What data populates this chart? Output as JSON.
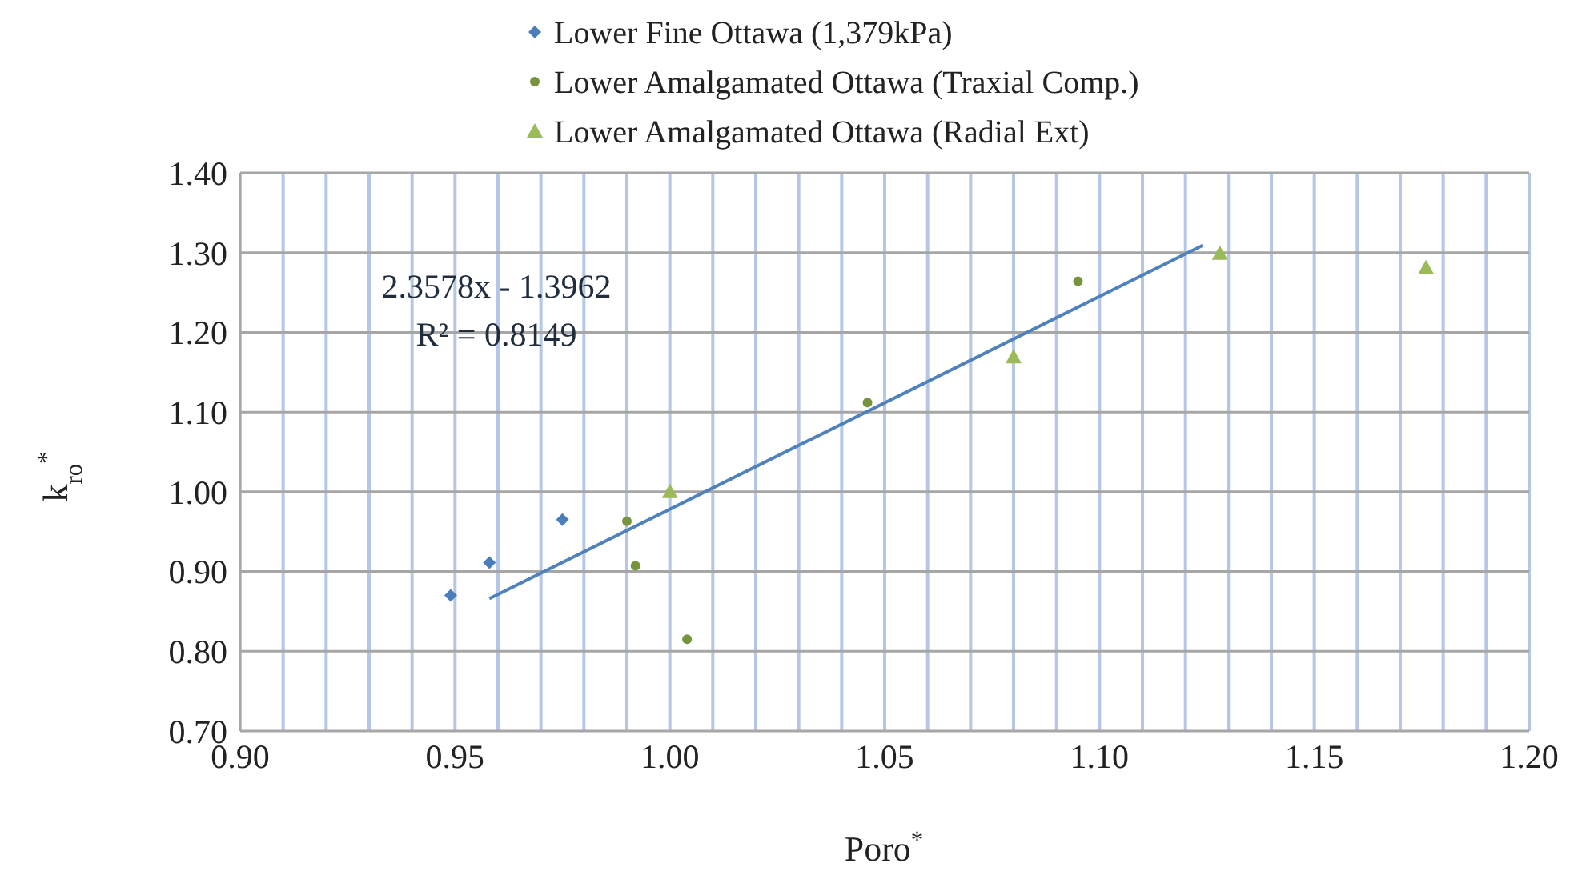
{
  "chart_data": {
    "type": "scatter",
    "xlabel": "Poro$^{*}$",
    "ylabel": "k$_{ro}$$^{*}$",
    "xlim": [
      0.9,
      1.2
    ],
    "ylim": [
      0.7,
      1.4
    ],
    "xticks": [
      {
        "value": 0.9,
        "label": "0.90"
      },
      {
        "value": 0.91,
        "label": null
      },
      {
        "value": 0.92,
        "label": null
      },
      {
        "value": 0.93,
        "label": null
      },
      {
        "value": 0.94,
        "label": null
      },
      {
        "value": 0.95,
        "label": "0.95"
      },
      {
        "value": 0.96,
        "label": null
      },
      {
        "value": 0.97,
        "label": null
      },
      {
        "value": 0.98,
        "label": null
      },
      {
        "value": 0.99,
        "label": null
      },
      {
        "value": 1.0,
        "label": "1.00"
      },
      {
        "value": 1.01,
        "label": null
      },
      {
        "value": 1.02,
        "label": null
      },
      {
        "value": 1.03,
        "label": null
      },
      {
        "value": 1.04,
        "label": null
      },
      {
        "value": 1.05,
        "label": "1.05"
      },
      {
        "value": 1.06,
        "label": null
      },
      {
        "value": 1.07,
        "label": null
      },
      {
        "value": 1.08,
        "label": null
      },
      {
        "value": 1.09,
        "label": null
      },
      {
        "value": 1.1,
        "label": "1.10"
      },
      {
        "value": 1.11,
        "label": null
      },
      {
        "value": 1.12,
        "label": null
      },
      {
        "value": 1.13,
        "label": null
      },
      {
        "value": 1.14,
        "label": null
      },
      {
        "value": 1.15,
        "label": "1.15"
      },
      {
        "value": 1.16,
        "label": null
      },
      {
        "value": 1.17,
        "label": null
      },
      {
        "value": 1.18,
        "label": null
      },
      {
        "value": 1.19,
        "label": null
      },
      {
        "value": 1.2,
        "label": "1.20"
      }
    ],
    "yticks": [
      {
        "value": 0.7,
        "label": "0.70"
      },
      {
        "value": 0.8,
        "label": "0.80"
      },
      {
        "value": 0.9,
        "label": "0.90"
      },
      {
        "value": 1.0,
        "label": "1.00"
      },
      {
        "value": 1.1,
        "label": "1.10"
      },
      {
        "value": 1.2,
        "label": "1.20"
      },
      {
        "value": 1.3,
        "label": "1.30"
      },
      {
        "value": 1.4,
        "label": "1.40"
      }
    ],
    "grid": true,
    "legend": "top",
    "series": [
      {
        "name": "Lower Fine Ottawa (1,379kPa)",
        "color": "#4a7ebb",
        "marker": "diamond",
        "x": [
          0.949,
          0.958,
          0.975
        ],
        "values": [
          0.87,
          0.911,
          0.965
        ]
      },
      {
        "name": "Lower Amalgamated Ottawa (Traxial Comp.)",
        "color": "#77933c",
        "marker": "circle",
        "x": [
          0.99,
          0.992,
          1.004,
          1.046,
          1.095
        ],
        "values": [
          0.963,
          0.907,
          0.815,
          1.112,
          1.264
        ]
      },
      {
        "name": "Lower Amalgamated Ottawa (Radial Ext)",
        "color": "#9bbb59",
        "marker": "triangle",
        "x": [
          1.0,
          1.08,
          1.128,
          1.176
        ],
        "values": [
          1.0,
          1.169,
          1.299,
          1.281
        ]
      },
      {
        "type": "line",
        "color": "#4f81bd",
        "marker": "none",
        "x": [
          0.958,
          1.124
        ],
        "values": [
          0.866,
          1.309
        ]
      }
    ],
    "annotations": [
      "2.3578x - 1.3962",
      "R² = 0.8149"
    ]
  }
}
